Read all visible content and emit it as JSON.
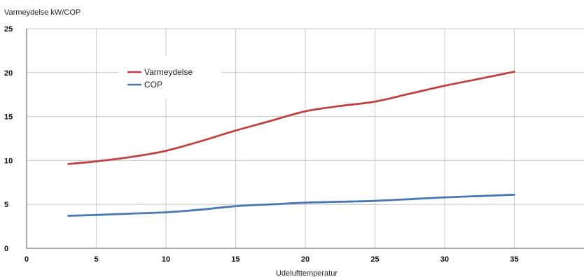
{
  "chart_data": {
    "type": "line",
    "title": "",
    "ylabel": "Varmeydelse kW/COP",
    "xlabel": "Udelufttemperatur",
    "xlim": [
      0,
      40
    ],
    "ylim": [
      0,
      25
    ],
    "xticks": [
      0,
      5,
      10,
      15,
      20,
      25,
      30,
      35
    ],
    "yticks": [
      0,
      5,
      10,
      15,
      20,
      25
    ],
    "grid": true,
    "legend_position": "upper-left",
    "x": [
      3,
      5,
      7.5,
      10,
      12.5,
      15,
      17.5,
      20,
      22.5,
      25,
      27.5,
      30,
      32.5,
      35
    ],
    "series": [
      {
        "name": "Varmeydelse",
        "color": "#c0413e",
        "values": [
          9.6,
          9.9,
          10.4,
          11.1,
          12.2,
          13.4,
          14.5,
          15.6,
          16.2,
          16.7,
          17.6,
          18.5,
          19.3,
          20.1
        ]
      },
      {
        "name": "COP",
        "color": "#4a78b2",
        "values": [
          3.7,
          3.8,
          3.95,
          4.1,
          4.4,
          4.8,
          5.0,
          5.2,
          5.3,
          5.4,
          5.6,
          5.8,
          5.95,
          6.1
        ]
      }
    ]
  }
}
